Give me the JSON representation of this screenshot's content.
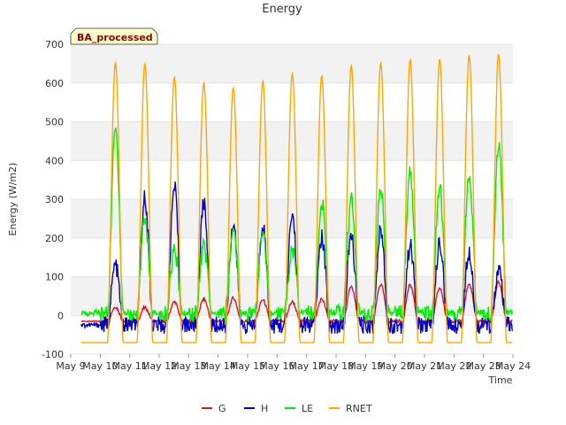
{
  "chart_data": {
    "type": "line",
    "title": "Energy",
    "xlabel": "Time",
    "ylabel": "Energy (W/m2)",
    "tag_label": "BA_processed",
    "xlim": [
      "2000-05-09",
      "2000-05-24"
    ],
    "ylim": [
      -100,
      700
    ],
    "y_ticks": [
      -100,
      0,
      100,
      200,
      300,
      400,
      500,
      600,
      700
    ],
    "x_tick_labels": [
      "May 9",
      "May 10",
      "May 11",
      "May 12",
      "May 13",
      "May 14",
      "May 15",
      "May 16",
      "May 17",
      "May 18",
      "May 19",
      "May 20",
      "May 21",
      "May 22",
      "May 23",
      "May 24"
    ],
    "grid": true,
    "legend_position": "bottom-center",
    "days": [
      "May 9",
      "May 10",
      "May 11",
      "May 12",
      "May 13",
      "May 14",
      "May 15",
      "May 16",
      "May 17",
      "May 18",
      "May 19",
      "May 20",
      "May 21",
      "May 22",
      "May 23"
    ],
    "series": [
      {
        "name": "G",
        "color": "#d7191c",
        "night": -15,
        "noon_peak": [
          0,
          22,
          20,
          35,
          42,
          45,
          40,
          35,
          42,
          75,
          80,
          78,
          70,
          80,
          85
        ]
      },
      {
        "name": "H",
        "color": "#0000cc",
        "night": -25,
        "noon_peak": [
          0,
          130,
          305,
          330,
          290,
          240,
          235,
          260,
          200,
          205,
          220,
          180,
          185,
          165,
          115
        ]
      },
      {
        "name": "LE",
        "color": "#00ee00",
        "night": 5,
        "noon_peak": [
          0,
          480,
          250,
          165,
          180,
          225,
          220,
          170,
          295,
          300,
          320,
          370,
          330,
          360,
          440
        ]
      },
      {
        "name": "RNET",
        "color": "#ffa500",
        "night": -70,
        "noon_peak": [
          0,
          652,
          650,
          615,
          600,
          588,
          605,
          625,
          618,
          645,
          652,
          660,
          662,
          672,
          675
        ]
      }
    ]
  }
}
